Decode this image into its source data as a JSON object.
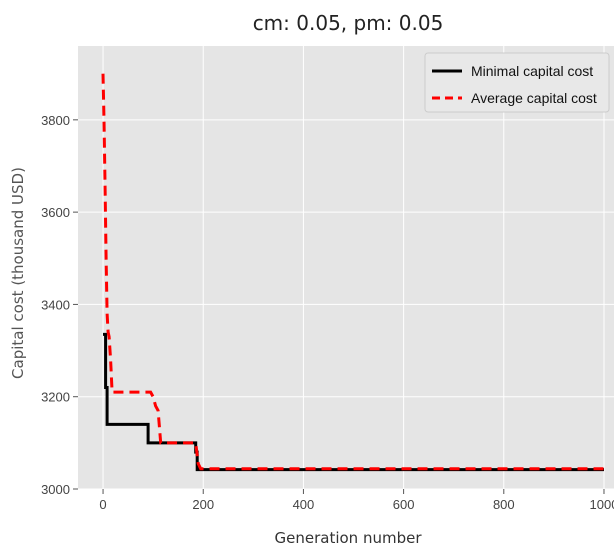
{
  "chart_data": {
    "type": "line",
    "title": "cm: 0.05, pm: 0.05",
    "xlabel": "Generation number",
    "ylabel": "Capital cost (thousand USD)",
    "xlim": [
      -50,
      1020
    ],
    "ylim": [
      3000,
      3960
    ],
    "x_ticks": [
      0,
      200,
      400,
      600,
      800,
      1000
    ],
    "y_ticks": [
      3000,
      3200,
      3400,
      3600,
      3800
    ],
    "grid": true,
    "legend_position": "top-right",
    "background_color": "#e5e5e5",
    "series": [
      {
        "name": "Minimal capital cost",
        "color": "#000000",
        "style": "solid",
        "points": [
          [
            0,
            3335
          ],
          [
            5,
            3335
          ],
          [
            5,
            3220
          ],
          [
            8,
            3220
          ],
          [
            8,
            3140
          ],
          [
            90,
            3140
          ],
          [
            90,
            3100
          ],
          [
            185,
            3100
          ],
          [
            185,
            3080
          ],
          [
            188,
            3080
          ],
          [
            188,
            3042
          ],
          [
            1000,
            3042
          ]
        ]
      },
      {
        "name": "Average capital cost",
        "color": "#ff0000",
        "style": "dashed",
        "points": [
          [
            0,
            3900
          ],
          [
            2,
            3800
          ],
          [
            4,
            3650
          ],
          [
            6,
            3500
          ],
          [
            8,
            3380
          ],
          [
            10,
            3340
          ],
          [
            12,
            3330
          ],
          [
            15,
            3280
          ],
          [
            18,
            3210
          ],
          [
            95,
            3210
          ],
          [
            100,
            3200
          ],
          [
            105,
            3180
          ],
          [
            110,
            3170
          ],
          [
            115,
            3100
          ],
          [
            185,
            3100
          ],
          [
            190,
            3055
          ],
          [
            195,
            3044
          ],
          [
            1000,
            3044
          ]
        ]
      }
    ]
  }
}
